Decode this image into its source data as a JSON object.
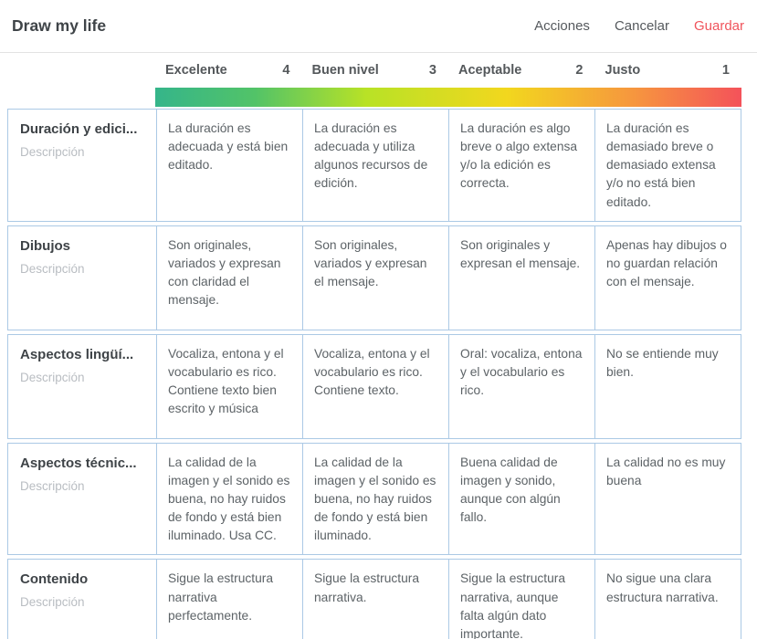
{
  "topbar": {
    "title": "Draw my life",
    "actions_label": "Acciones",
    "cancel_label": "Cancelar",
    "save_label": "Guardar",
    "save_color": "#f0545c"
  },
  "rubric": {
    "gradient_colors": [
      "#35b58a",
      "#52c368",
      "#b8e226",
      "#f2d71e",
      "#f6953f",
      "#f4525a"
    ],
    "border_color": "#abc9e5",
    "columns": [
      {
        "label": "Excelente",
        "score": "4"
      },
      {
        "label": "Buen nivel",
        "score": "3"
      },
      {
        "label": "Aceptable",
        "score": "2"
      },
      {
        "label": "Justo",
        "score": "1"
      }
    ],
    "rows": [
      {
        "title": "Duración y edici...",
        "description_placeholder": "Descripción",
        "levels": [
          "La duración es adecuada y está bien editado.",
          "La duración es adecuada y utiliza algunos recursos de edición.",
          "La duración es algo breve o algo extensa y/o la edición es correcta.",
          "La duración es demasiado breve o demasiado extensa y/o no está bien editado."
        ]
      },
      {
        "title": "Dibujos",
        "description_placeholder": "Descripción",
        "levels": [
          "Son originales, variados y expresan con claridad el mensaje.",
          "Son originales, variados y expresan el mensaje.",
          "Son originales y expresan el mensaje.",
          "Apenas hay dibujos o no guardan relación con el mensaje."
        ]
      },
      {
        "title": "Aspectos lingüí...",
        "description_placeholder": "Descripción",
        "levels": [
          "Vocaliza, entona y el vocabulario es rico. Contiene texto bien escrito y música",
          "Vocaliza, entona y el vocabulario es rico. Contiene texto.",
          "Oral: vocaliza, entona y el vocabulario es rico.",
          "No se entiende muy bien."
        ]
      },
      {
        "title": "Aspectos técnic...",
        "description_placeholder": "Descripción",
        "levels": [
          "La calidad de la imagen y el sonido es buena, no hay ruidos de fondo y está bien iluminado. Usa CC.",
          "La calidad de la imagen y el sonido es buena, no hay ruidos de fondo y está bien iluminado.",
          "Buena calidad de imagen y sonido, aunque con algún fallo.",
          "La calidad no es muy buena"
        ]
      },
      {
        "title": "Contenido",
        "description_placeholder": "Descripción",
        "levels": [
          "Sigue la estructura narrativa perfectamente.",
          "Sigue la estructura narrativa.",
          "Sigue la estructura narrativa, aunque falta algún dato importante.",
          "No sigue una clara estructura narrativa."
        ]
      }
    ]
  }
}
